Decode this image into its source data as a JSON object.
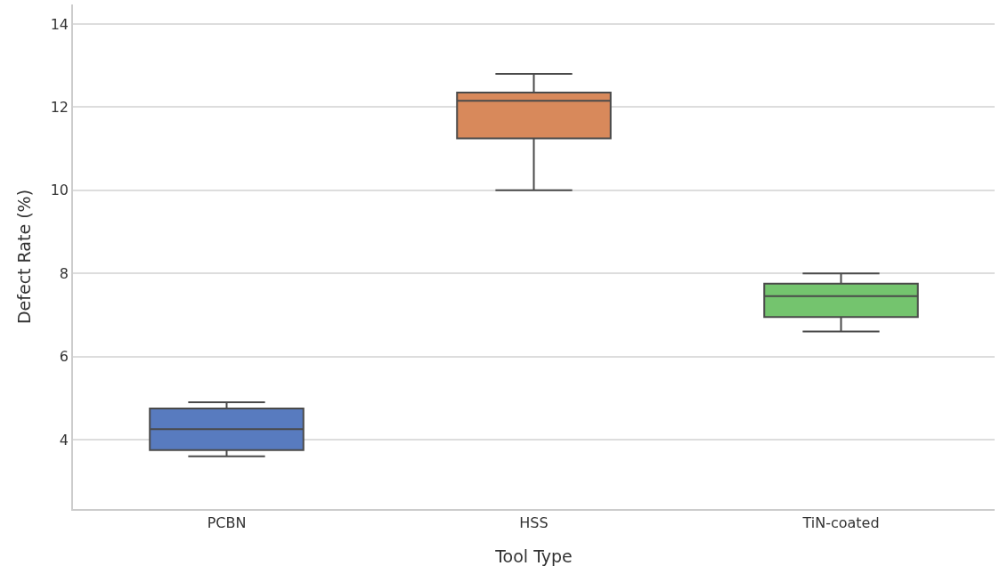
{
  "chart_data": {
    "type": "box",
    "xlabel": "Tool Type",
    "ylabel": "Defect Rate (%)",
    "categories": [
      "PCBN",
      "HSS",
      "TiN-coated"
    ],
    "colors": [
      "#587bbf",
      "#d8895b",
      "#74c46e"
    ],
    "boxes": [
      {
        "low": 3.6,
        "q1": 3.75,
        "median": 4.25,
        "q3": 4.75,
        "high": 4.9
      },
      {
        "low": 10.0,
        "q1": 11.25,
        "median": 12.15,
        "q3": 12.35,
        "high": 12.8
      },
      {
        "low": 6.6,
        "q1": 6.95,
        "median": 7.45,
        "q3": 7.75,
        "high": 8.0
      }
    ],
    "ylim": [
      2.33,
      14.47
    ],
    "yticks": [
      4,
      6,
      8,
      10,
      12,
      14
    ],
    "grid": "y"
  }
}
